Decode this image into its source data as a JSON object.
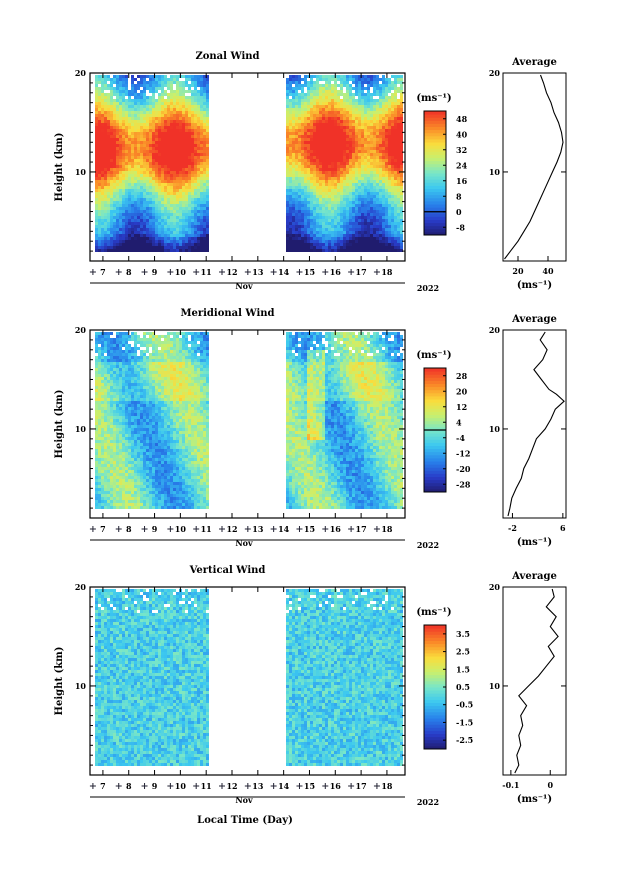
{
  "figure": {
    "xlabel": "Local Time (Day)",
    "month": "Nov",
    "year": "2022",
    "ylabel": "Height (km)",
    "unit": "(ms⁻¹)"
  },
  "chart_data": [
    {
      "type": "heatmap",
      "title": "Zonal Wind",
      "ylabel": "Height (km)",
      "x_ticks": [
        "7",
        "8",
        "9",
        "10",
        "11",
        "12",
        "13",
        "14",
        "15",
        "16",
        "17",
        "18"
      ],
      "xlim_day": [
        6.5,
        18.7
      ],
      "y_ticks": [
        10,
        20
      ],
      "ylim_km": [
        1,
        20
      ],
      "data_gaps_day": [
        [
          11.1,
          14.1
        ]
      ],
      "data_start_day": 6.7,
      "data_end_day": 18.6,
      "colorbar_label": "(ms⁻¹)",
      "colorbar_ticks": [
        -8,
        0,
        8,
        16,
        24,
        32,
        40,
        48
      ],
      "colorbar_range": [
        -12,
        52
      ],
      "zero_contour": true,
      "profile": {
        "title": "Average",
        "xlabel": "(ms⁻¹)",
        "x_ticks": [
          20,
          40
        ],
        "xlim": [
          10,
          52
        ],
        "ylim_km": [
          1,
          20
        ],
        "y_ticks": [
          10,
          20
        ],
        "heights_km": [
          1.2,
          2,
          3,
          4,
          5,
          6,
          7,
          8,
          9,
          10,
          11,
          12,
          13,
          14,
          15,
          16,
          17,
          18,
          19,
          19.8
        ],
        "values": [
          11,
          15,
          20,
          24,
          28,
          31,
          34,
          37,
          40,
          43,
          46,
          48.5,
          50,
          49,
          47,
          44,
          42,
          39,
          37,
          35
        ]
      }
    },
    {
      "type": "heatmap",
      "title": "Meridional Wind",
      "ylabel": "Height (km)",
      "x_ticks": [
        "7",
        "8",
        "9",
        "10",
        "11",
        "12",
        "13",
        "14",
        "15",
        "16",
        "17",
        "18"
      ],
      "xlim_day": [
        6.5,
        18.7
      ],
      "y_ticks": [
        10,
        20
      ],
      "ylim_km": [
        1,
        20
      ],
      "data_gaps_day": [
        [
          11.1,
          14.1
        ]
      ],
      "data_start_day": 6.7,
      "data_end_day": 18.6,
      "colorbar_label": "(ms⁻¹)",
      "colorbar_ticks": [
        -28,
        -20,
        -12,
        -4,
        4,
        12,
        20,
        28
      ],
      "colorbar_range": [
        -32,
        32
      ],
      "zero_contour": true,
      "profile": {
        "title": "Average",
        "xlabel": "(ms⁻¹)",
        "x_ticks": [
          -2,
          6
        ],
        "xlim": [
          -3.5,
          6.5
        ],
        "ylim_km": [
          1,
          20
        ],
        "y_ticks": [
          10,
          20
        ],
        "heights_km": [
          1.2,
          2,
          3,
          4,
          5,
          6,
          7,
          8,
          9,
          10,
          11,
          12,
          12.8,
          13.5,
          14,
          15,
          16,
          17,
          18,
          19,
          19.8
        ],
        "values": [
          -2.7,
          -2.4,
          -2.1,
          -1.4,
          -0.6,
          -0.2,
          0.6,
          1.2,
          1.8,
          3.2,
          4.1,
          4.8,
          6.2,
          5.0,
          3.8,
          2.6,
          1.4,
          2.8,
          3.5,
          2.4,
          3.2
        ]
      }
    },
    {
      "type": "heatmap",
      "title": "Vertical Wind",
      "ylabel": "Height (km)",
      "x_ticks": [
        "7",
        "8",
        "9",
        "10",
        "11",
        "12",
        "13",
        "14",
        "15",
        "16",
        "17",
        "18"
      ],
      "xlim_day": [
        6.5,
        18.7
      ],
      "y_ticks": [
        10,
        20
      ],
      "ylim_km": [
        1,
        20
      ],
      "data_gaps_day": [
        [
          11.1,
          14.1
        ]
      ],
      "data_start_day": 6.7,
      "data_end_day": 18.6,
      "colorbar_label": "(ms⁻¹)",
      "colorbar_ticks": [
        -2.5,
        -1.5,
        -0.5,
        0.5,
        1.5,
        2.5,
        3.5
      ],
      "colorbar_range": [
        -3,
        4
      ],
      "zero_contour": false,
      "profile": {
        "title": "Average",
        "xlabel": "(ms⁻¹)",
        "x_ticks": [
          -0.1,
          0.0
        ],
        "xlim": [
          -0.12,
          0.04
        ],
        "ylim_km": [
          1,
          20
        ],
        "y_ticks": [
          10,
          20
        ],
        "heights_km": [
          1.2,
          2,
          3,
          4,
          5,
          6,
          7,
          8,
          9,
          10,
          11,
          12,
          13,
          14,
          15,
          16,
          17,
          18,
          19,
          19.8
        ],
        "values": [
          -0.09,
          -0.08,
          -0.085,
          -0.075,
          -0.08,
          -0.07,
          -0.075,
          -0.06,
          -0.08,
          -0.055,
          -0.03,
          -0.01,
          0.01,
          -0.005,
          0.02,
          0.0,
          0.015,
          -0.01,
          0.01,
          0.005
        ]
      }
    }
  ]
}
